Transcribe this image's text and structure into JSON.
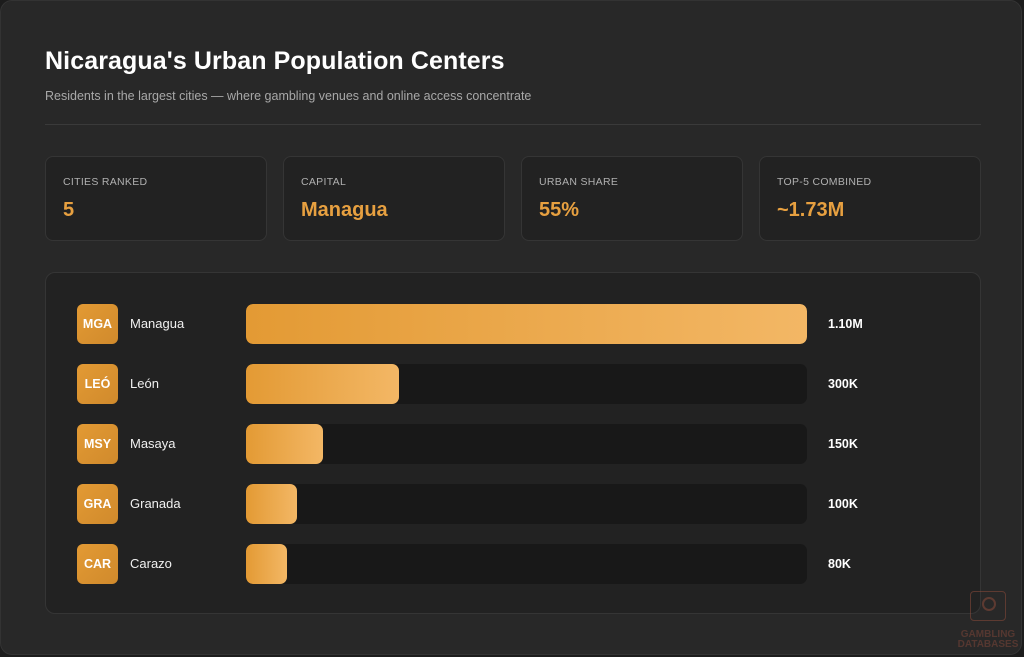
{
  "header": {
    "title": "Nicaragua's Urban Population Centers",
    "subtitle": "Residents in the largest cities — where gambling venues and online access concentrate"
  },
  "stats": [
    {
      "label": "CITIES RANKED",
      "value": "5"
    },
    {
      "label": "CAPITAL",
      "value": "Managua"
    },
    {
      "label": "URBAN SHARE",
      "value": "55%"
    },
    {
      "label": "TOP-5 COMBINED",
      "value": "~1.73M"
    }
  ],
  "chart_data": {
    "type": "bar",
    "orientation": "horizontal",
    "title": "Nicaragua's Urban Population Centers",
    "subtitle": "Residents in the largest cities — where gambling venues and online access concentrate",
    "categories": [
      "Managua",
      "León",
      "Masaya",
      "Granada",
      "Carazo"
    ],
    "codes": [
      "MGA",
      "LEÓ",
      "MSY",
      "GRA",
      "CAR"
    ],
    "values": [
      1100000,
      300000,
      150000,
      100000,
      80000
    ],
    "value_labels": [
      "1.10M",
      "300K",
      "150K",
      "100K",
      "80K"
    ],
    "xlim": [
      0,
      1100000
    ],
    "grid": false,
    "legend": "none"
  },
  "colors": {
    "accent": "#e7a040",
    "bar_start": "#e39a34",
    "bar_end": "#f3b765",
    "track": "#181818",
    "background": "#282828"
  },
  "watermark": {
    "icon": "poker-chip-icon",
    "text": "GAMBLING DATABASES"
  }
}
